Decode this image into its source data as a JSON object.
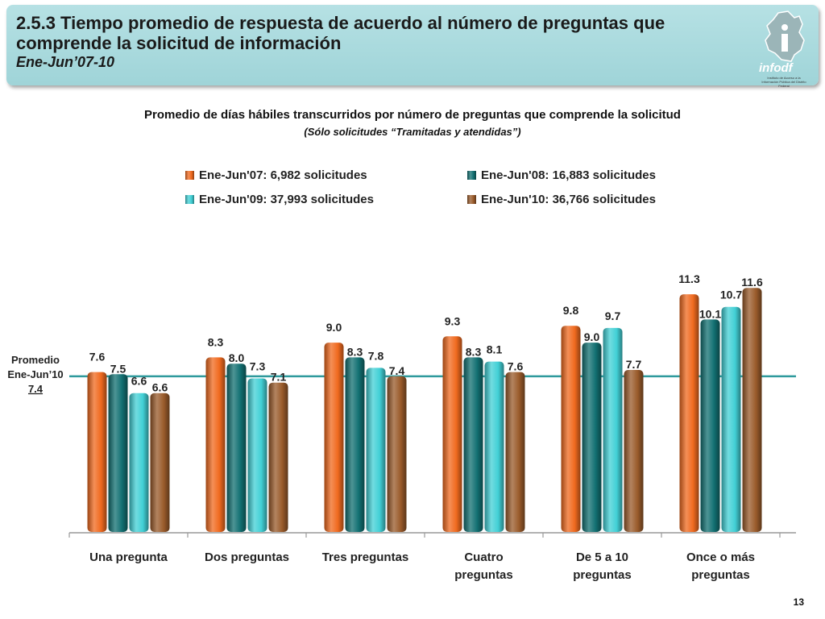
{
  "header": {
    "title": "2.5.3 Tiempo promedio de respuesta de acuerdo al número de preguntas que comprende la solicitud de información",
    "subtitle": "Ene-Jun’07-10",
    "logo_text": "infodf",
    "logo_subtitle": "Instituto de Acceso a la Información Pública del Distrito Federal"
  },
  "page_number": "13",
  "colors": {
    "header_bg": "#a6d8dc",
    "series": [
      "#f06a1f",
      "#127072",
      "#42d0d6",
      "#9a5b2b"
    ],
    "average_line": "#2e9a9c"
  },
  "chart_data": {
    "type": "bar",
    "title": "Promedio de días hábiles transcurridos por número de preguntas que comprende la solicitud",
    "subtitle": "(Sólo solicitudes “Tramitadas y atendidas”)",
    "categories": [
      [
        "Una pregunta"
      ],
      [
        "Dos preguntas"
      ],
      [
        "Tres preguntas"
      ],
      [
        "Cuatro",
        "preguntas"
      ],
      [
        "De 5 a 10",
        "preguntas"
      ],
      [
        "Once o más",
        "preguntas"
      ]
    ],
    "series": [
      {
        "name": "Ene-Jun'07: 6,982 solicitudes",
        "values": [
          7.6,
          8.3,
          9.0,
          9.3,
          9.8,
          11.3
        ]
      },
      {
        "name": "Ene-Jun'08: 16,883 solicitudes",
        "values": [
          7.5,
          8.0,
          8.3,
          8.3,
          9.0,
          10.1
        ]
      },
      {
        "name": "Ene-Jun'09: 37,993 solicitudes",
        "values": [
          6.6,
          7.3,
          7.8,
          8.1,
          9.7,
          10.7
        ]
      },
      {
        "name": "Ene-Jun'10: 36,766 solicitudes",
        "values": [
          6.6,
          7.1,
          7.4,
          7.6,
          7.7,
          11.6
        ]
      }
    ],
    "average": {
      "label_lines": [
        "Promedio",
        "Ene-Jun’10"
      ],
      "value": 7.4
    },
    "legend_position": "top",
    "ylim": [
      0,
      12
    ],
    "grid": false,
    "value_format": "one-decimal"
  }
}
